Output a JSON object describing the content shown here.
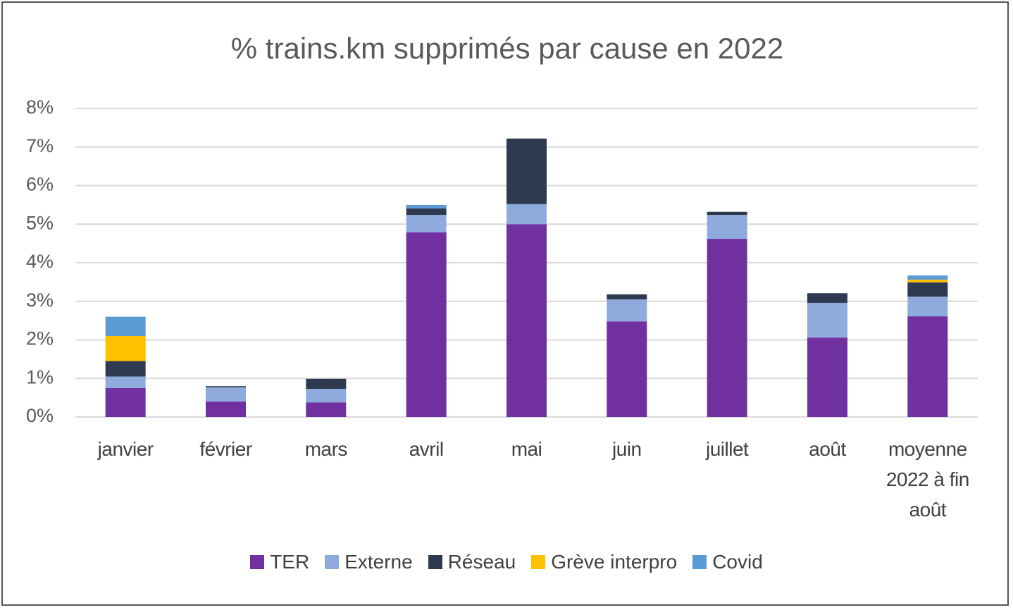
{
  "chart_data": {
    "type": "stacked_bar",
    "title": "% trains.km supprimés par cause en 2022",
    "categories": [
      "janvier",
      "février",
      "mars",
      "avril",
      "mai",
      "juin",
      "juillet",
      "août",
      "moyenne 2022 à fin août"
    ],
    "series": [
      {
        "name": "TER",
        "color": "#7030a0",
        "values": [
          0.75,
          0.4,
          0.38,
          4.79,
          5.0,
          2.48,
          4.62,
          2.06,
          2.61
        ]
      },
      {
        "name": "Externe",
        "color": "#8faadc",
        "values": [
          0.3,
          0.37,
          0.35,
          0.45,
          0.52,
          0.57,
          0.62,
          0.9,
          0.51
        ]
      },
      {
        "name": "Réseau",
        "color": "#2e3a4f",
        "values": [
          0.4,
          0.03,
          0.26,
          0.17,
          1.7,
          0.13,
          0.08,
          0.25,
          0.37
        ]
      },
      {
        "name": "Grève interpro",
        "color": "#ffc000",
        "values": [
          0.65,
          0,
          0,
          0,
          0,
          0,
          0,
          0,
          0.07
        ]
      },
      {
        "name": "Covid",
        "color": "#5b9bd5",
        "values": [
          0.5,
          0,
          0,
          0.09,
          0,
          0,
          0,
          0,
          0.11
        ]
      }
    ],
    "ylim": [
      0,
      8
    ],
    "yticks": [
      {
        "value": 0,
        "label": "0%"
      },
      {
        "value": 1,
        "label": "1%"
      },
      {
        "value": 2,
        "label": "2%"
      },
      {
        "value": 3,
        "label": "3%"
      },
      {
        "value": 4,
        "label": "4%"
      },
      {
        "value": 5,
        "label": "5%"
      },
      {
        "value": 6,
        "label": "6%"
      },
      {
        "value": 7,
        "label": "7%"
      },
      {
        "value": 8,
        "label": "8%"
      }
    ],
    "grid": true
  }
}
